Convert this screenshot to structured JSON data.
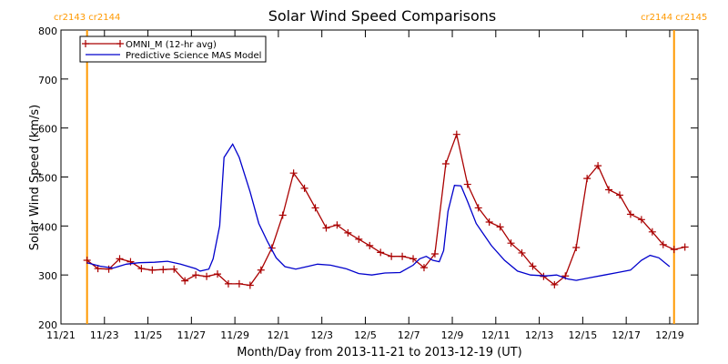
{
  "chart_data": {
    "type": "line",
    "title": "Solar Wind Speed Comparisons",
    "xlabel": "Month/Day from 2013-11-21 to 2013-12-19 (UT)",
    "ylabel": "Solar Wind Speed (km/s)",
    "xlim": [
      0,
      29.3
    ],
    "ylim": [
      200,
      800
    ],
    "xticks": [
      {
        "value": 0,
        "label": "11/21"
      },
      {
        "value": 2,
        "label": "11/23"
      },
      {
        "value": 4,
        "label": "11/25"
      },
      {
        "value": 6,
        "label": "11/27"
      },
      {
        "value": 8,
        "label": "11/29"
      },
      {
        "value": 10,
        "label": "12/1"
      },
      {
        "value": 12,
        "label": "12/3"
      },
      {
        "value": 14,
        "label": "12/5"
      },
      {
        "value": 16,
        "label": "12/7"
      },
      {
        "value": 18,
        "label": "12/9"
      },
      {
        "value": 20,
        "label": "12/11"
      },
      {
        "value": 22,
        "label": "12/13"
      },
      {
        "value": 24,
        "label": "12/15"
      },
      {
        "value": 26,
        "label": "12/17"
      },
      {
        "value": 28,
        "label": "12/19"
      }
    ],
    "yticks": [
      200,
      300,
      400,
      500,
      600,
      700,
      800
    ],
    "legend": "upper left",
    "series": [
      {
        "name": "OMNI_M (12-hr avg)",
        "color": "#aa0000",
        "marker": "+",
        "x": [
          1.2,
          1.7,
          2.2,
          2.7,
          3.2,
          3.7,
          4.2,
          4.7,
          5.2,
          5.7,
          6.2,
          6.7,
          7.2,
          7.7,
          8.2,
          8.7,
          9.2,
          9.7,
          10.2,
          10.7,
          11.2,
          11.7,
          12.2,
          12.7,
          13.2,
          13.7,
          14.2,
          14.7,
          15.2,
          15.7,
          16.2,
          16.7,
          17.2,
          17.7,
          18.2,
          18.7,
          19.2,
          19.7,
          20.2,
          20.7,
          21.2,
          21.7,
          22.2,
          22.7,
          23.2,
          23.7,
          24.2,
          24.7,
          25.2,
          25.7,
          26.2,
          26.7,
          27.2,
          27.7,
          28.2,
          28.7
        ],
        "values": [
          330,
          313,
          312,
          333,
          327,
          313,
          310,
          311,
          312,
          288,
          300,
          297,
          302,
          282,
          282,
          279,
          310,
          355,
          422,
          508,
          477,
          437,
          396,
          402,
          386,
          373,
          360,
          346,
          338,
          338,
          333,
          315,
          343,
          527,
          587,
          485,
          437,
          408,
          398,
          365,
          345,
          318,
          297,
          280,
          298,
          356,
          497,
          523,
          474,
          463,
          424,
          413,
          388,
          362,
          352,
          357
        ]
      },
      {
        "name": "Predictive Science MAS Model",
        "color": "#0000cc",
        "x": [
          1.2,
          1.8,
          2.4,
          3.0,
          3.6,
          4.3,
          4.9,
          5.5,
          6.2,
          6.4,
          6.8,
          7.0,
          7.3,
          7.5,
          7.9,
          8.2,
          8.7,
          9.1,
          9.5,
          9.9,
          10.3,
          10.8,
          11.4,
          11.8,
          12.4,
          13.1,
          13.7,
          14.3,
          14.9,
          15.6,
          16.2,
          16.5,
          16.8,
          17.1,
          17.4,
          17.6,
          17.8,
          18.1,
          18.4,
          18.7,
          19.1,
          19.8,
          20.4,
          21.0,
          21.6,
          22.3,
          22.8,
          23.3,
          23.7,
          24.4,
          25.0,
          25.6,
          26.2,
          26.7,
          27.1,
          27.5,
          28.0
        ],
        "values": [
          325,
          318,
          314,
          322,
          325,
          326,
          328,
          322,
          313,
          308,
          312,
          333,
          400,
          540,
          567,
          540,
          470,
          405,
          368,
          335,
          317,
          312,
          318,
          322,
          320,
          313,
          303,
          300,
          304,
          305,
          320,
          333,
          338,
          330,
          327,
          350,
          430,
          483,
          482,
          450,
          405,
          360,
          330,
          308,
          300,
          298,
          300,
          292,
          289,
          295,
          300,
          305,
          310,
          330,
          340,
          335,
          317
        ]
      }
    ],
    "annotations": [
      {
        "x": 1.2,
        "label": "cr2143 cr2144",
        "color": "#ff9900"
      },
      {
        "x": 28.2,
        "label": "cr2144 cr2145",
        "color": "#ff9900"
      }
    ]
  }
}
